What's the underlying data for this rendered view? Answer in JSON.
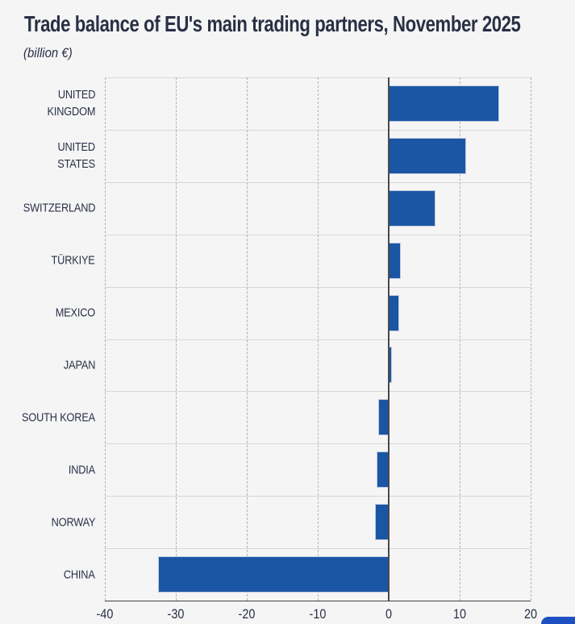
{
  "header": {
    "title": "Trade balance of EU's main trading partners, November 2025",
    "subtitle": "(billion €)"
  },
  "chart_data": {
    "type": "bar",
    "orientation": "horizontal",
    "title": "Trade balance of EU's main trading partners, November 2025",
    "subtitle": "(billion €)",
    "unit": "billion €",
    "categories": [
      [
        "UNITED",
        "KINGDOM"
      ],
      [
        "UNITED",
        "STATES"
      ],
      [
        "SWITZERLAND"
      ],
      [
        "TÜRKIYE"
      ],
      [
        "MEXICO"
      ],
      [
        "JAPAN"
      ],
      [
        "SOUTH KOREA"
      ],
      [
        "INDIA"
      ],
      [
        "NORWAY"
      ],
      [
        "CHINA"
      ]
    ],
    "values": [
      15.5,
      10.8,
      6.5,
      1.6,
      1.4,
      0.3,
      -1.4,
      -1.6,
      -1.8,
      -32.4
    ],
    "xlabel": "",
    "ylabel": "",
    "xlim": [
      -40,
      20
    ],
    "xticks": [
      -40,
      -30,
      -20,
      -10,
      0,
      10,
      20
    ],
    "grid": "dashed-vertical-at-ticks",
    "legend": "none",
    "colors": {
      "bar": "#1a56a4",
      "zero_line": "#4a4a4a",
      "axis_line": "#3f3f3f",
      "gridline": "#b1b1b5",
      "row_separator": "#d7d7d9",
      "text": "#293044",
      "background": "#f5f5f6",
      "partial_button": "#1e4fc2"
    }
  },
  "footer": {
    "partial_button": "cut-off rounded blue button at bottom-right"
  }
}
